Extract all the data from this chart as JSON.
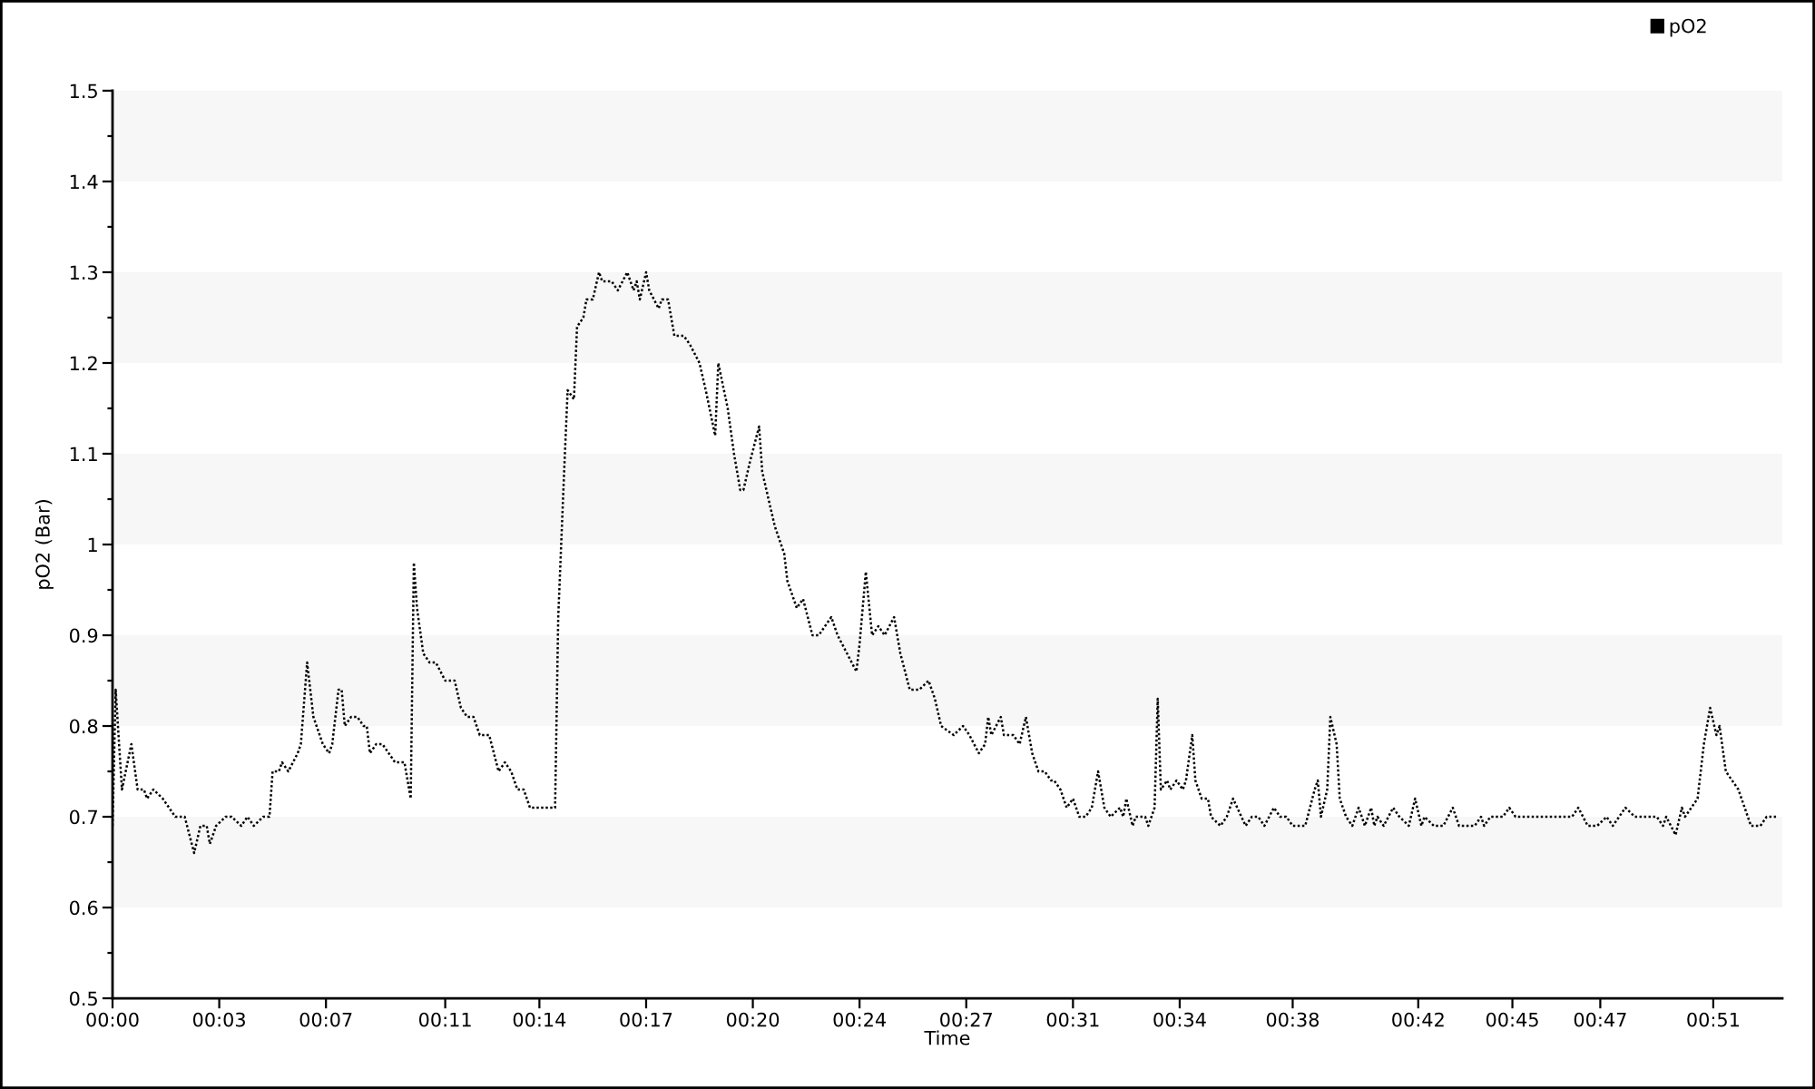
{
  "chart_data": {
    "type": "line",
    "xlabel": "Time",
    "ylabel": "pO2 (Bar)",
    "legend": "top right",
    "line_style": "dotted",
    "x": [
      0.0,
      0.1,
      0.3,
      0.6,
      0.8,
      1.0,
      1.1,
      1.3,
      1.6,
      1.8,
      2.0,
      2.3,
      2.6,
      2.8,
      3.0,
      3.1,
      3.3,
      3.6,
      3.8,
      4.1,
      4.3,
      4.5,
      4.8,
      5.0,
      5.1,
      5.3,
      5.4,
      5.6,
      5.9,
      6.0,
      6.2,
      6.4,
      6.7,
      6.9,
      7.0,
      7.2,
      7.3,
      7.4,
      7.6,
      7.8,
      8.0,
      8.1,
      8.2,
      8.4,
      8.6,
      8.8,
      9.0,
      9.3,
      9.5,
      9.6,
      9.7,
      9.9,
      10.1,
      10.3,
      10.6,
      10.9,
      11.1,
      11.3,
      11.5,
      11.7,
      12.0,
      12.3,
      12.5,
      12.7,
      12.9,
      13.1,
      13.3,
      14.1,
      14.2,
      14.4,
      14.5,
      14.7,
      14.8,
      15.0,
      15.1,
      15.3,
      15.5,
      15.6,
      15.9,
      16.1,
      16.4,
      16.6,
      16.7,
      16.8,
      17.0,
      17.1,
      17.4,
      17.5,
      17.7,
      17.9,
      18.2,
      18.4,
      18.7,
      18.9,
      19.2,
      19.3,
      19.6,
      19.8,
      20.0,
      20.1,
      20.3,
      20.6,
      20.7,
      20.9,
      21.1,
      21.4,
      21.5,
      21.7,
      21.8,
      22.0,
      22.3,
      22.5,
      22.7,
      22.9,
      23.1,
      23.4,
      23.7,
      23.8,
      24.0,
      24.2,
      24.4,
      24.6,
      24.9,
      25.1,
      25.4,
      25.7,
      26.0,
      26.2,
      26.4,
      26.8,
      27.1,
      27.3,
      27.6,
      27.8,
      27.9,
      28.0,
      28.3,
      28.4,
      28.7,
      28.9,
      29.1,
      29.3,
      29.5,
      29.7,
      29.9,
      30.0,
      30.2,
      30.4,
      30.6,
      30.8,
      31.0,
      31.2,
      31.4,
      31.6,
      31.8,
      32.1,
      32.2,
      32.3,
      32.5,
      32.6,
      32.9,
      33.0,
      33.2,
      33.3,
      33.4,
      33.6,
      33.7,
      33.9,
      34.1,
      34.2,
      34.4,
      34.5,
      34.7,
      34.9,
      35.0,
      35.3,
      35.5,
      35.7,
      36.1,
      36.3,
      36.5,
      36.7,
      37.0,
      37.2,
      37.4,
      37.6,
      38.0,
      38.3,
      38.4,
      38.5,
      38.7,
      38.8,
      39.0,
      39.1,
      39.3,
      39.5,
      39.7,
      39.9,
      40.1,
      40.2,
      40.3,
      40.5,
      40.8,
      41.0,
      41.3,
      41.5,
      41.7,
      41.8,
      42.1,
      42.4,
      42.7,
      42.9,
      43.4,
      43.6,
      43.7,
      43.9,
      44.1,
      44.3,
      44.5,
      44.7,
      46.5,
      46.7,
      47.0,
      47.3,
      47.6,
      47.8,
      48.2,
      48.5,
      49.2,
      49.4,
      49.5,
      49.8,
      50.0,
      50.1,
      50.3,
      50.5,
      50.7,
      50.9,
      51.1,
      51.2,
      51.4,
      51.6,
      51.8,
      52.2,
      52.5,
      52.7,
      53.0
    ],
    "series": [
      {
        "name": "pO2",
        "color": "#000000",
        "values": [
          0.69,
          0.84,
          0.73,
          0.78,
          0.73,
          0.73,
          0.72,
          0.73,
          0.72,
          0.71,
          0.7,
          0.7,
          0.66,
          0.69,
          0.69,
          0.67,
          0.69,
          0.7,
          0.7,
          0.69,
          0.7,
          0.69,
          0.7,
          0.7,
          0.75,
          0.75,
          0.76,
          0.75,
          0.77,
          0.78,
          0.87,
          0.81,
          0.78,
          0.77,
          0.78,
          0.84,
          0.84,
          0.8,
          0.81,
          0.81,
          0.8,
          0.8,
          0.77,
          0.78,
          0.78,
          0.77,
          0.76,
          0.76,
          0.72,
          0.98,
          0.93,
          0.88,
          0.87,
          0.87,
          0.85,
          0.85,
          0.82,
          0.81,
          0.81,
          0.79,
          0.79,
          0.75,
          0.76,
          0.75,
          0.73,
          0.73,
          0.71,
          0.71,
          0.92,
          1.09,
          1.17,
          1.16,
          1.24,
          1.25,
          1.27,
          1.27,
          1.3,
          1.29,
          1.29,
          1.28,
          1.3,
          1.28,
          1.29,
          1.27,
          1.3,
          1.28,
          1.26,
          1.27,
          1.27,
          1.23,
          1.23,
          1.22,
          1.2,
          1.17,
          1.12,
          1.2,
          1.15,
          1.1,
          1.06,
          1.06,
          1.09,
          1.13,
          1.08,
          1.05,
          1.02,
          0.99,
          0.96,
          0.94,
          0.93,
          0.94,
          0.9,
          0.9,
          0.91,
          0.92,
          0.9,
          0.88,
          0.86,
          0.89,
          0.97,
          0.9,
          0.91,
          0.9,
          0.92,
          0.88,
          0.84,
          0.84,
          0.85,
          0.83,
          0.8,
          0.79,
          0.8,
          0.79,
          0.77,
          0.78,
          0.81,
          0.79,
          0.81,
          0.79,
          0.79,
          0.78,
          0.81,
          0.77,
          0.75,
          0.75,
          0.74,
          0.74,
          0.73,
          0.71,
          0.72,
          0.7,
          0.7,
          0.71,
          0.75,
          0.71,
          0.7,
          0.71,
          0.7,
          0.72,
          0.69,
          0.7,
          0.7,
          0.69,
          0.71,
          0.83,
          0.73,
          0.74,
          0.73,
          0.74,
          0.73,
          0.74,
          0.79,
          0.74,
          0.72,
          0.72,
          0.7,
          0.69,
          0.7,
          0.72,
          0.69,
          0.7,
          0.7,
          0.69,
          0.71,
          0.7,
          0.7,
          0.69,
          0.69,
          0.73,
          0.74,
          0.7,
          0.73,
          0.81,
          0.78,
          0.72,
          0.7,
          0.69,
          0.71,
          0.69,
          0.71,
          0.69,
          0.7,
          0.69,
          0.71,
          0.7,
          0.69,
          0.72,
          0.69,
          0.7,
          0.69,
          0.69,
          0.71,
          0.69,
          0.69,
          0.7,
          0.69,
          0.7,
          0.7,
          0.7,
          0.71,
          0.7,
          0.7,
          0.71,
          0.69,
          0.69,
          0.7,
          0.69,
          0.71,
          0.7,
          0.7,
          0.69,
          0.7,
          0.68,
          0.71,
          0.7,
          0.71,
          0.72,
          0.78,
          0.82,
          0.79,
          0.8,
          0.75,
          0.74,
          0.73,
          0.69,
          0.69,
          0.7,
          0.7
        ]
      }
    ],
    "xlim": [
      0,
      53.2
    ],
    "xticks": [
      {
        "value": 0,
        "label": "00:00"
      },
      {
        "value": 3.4,
        "label": "00:03"
      },
      {
        "value": 6.8,
        "label": "00:07"
      },
      {
        "value": 10.6,
        "label": "00:11"
      },
      {
        "value": 13.6,
        "label": "00:14"
      },
      {
        "value": 17,
        "label": "00:17"
      },
      {
        "value": 20.4,
        "label": "00:20"
      },
      {
        "value": 23.8,
        "label": "00:24"
      },
      {
        "value": 27.2,
        "label": "00:27"
      },
      {
        "value": 30.6,
        "label": "00:31"
      },
      {
        "value": 34,
        "label": "00:34"
      },
      {
        "value": 37.6,
        "label": "00:38"
      },
      {
        "value": 41.6,
        "label": "00:42"
      },
      {
        "value": 44.6,
        "label": "00:45"
      },
      {
        "value": 47.4,
        "label": "00:47"
      },
      {
        "value": 51,
        "label": "00:51"
      }
    ],
    "ylim": [
      0.5,
      1.5
    ],
    "yticks": [
      0.5,
      {
        "value": 0.55,
        "label": null
      },
      0.6,
      {
        "value": 0.65,
        "label": null
      },
      0.7,
      {
        "value": 0.75,
        "label": null
      },
      0.8,
      {
        "value": 0.85,
        "label": null
      },
      0.9,
      {
        "value": 0.95,
        "label": null
      },
      1,
      {
        "value": 1.05,
        "label": null
      },
      1.1,
      {
        "value": 1.15,
        "label": null
      },
      1.2,
      {
        "value": 1.25,
        "label": null
      },
      1.3,
      {
        "value": 1.35,
        "label": null
      },
      1.4,
      {
        "value": 1.45,
        "label": null
      },
      1.5
    ],
    "bands": [
      {
        "axis": "y",
        "from": 0.6,
        "to": 0.7,
        "color": "#f7f7f7"
      },
      {
        "axis": "y",
        "from": 0.8,
        "to": 0.9,
        "color": "#f7f7f7"
      },
      {
        "axis": "y",
        "from": 1.0,
        "to": 1.1,
        "color": "#f7f7f7"
      },
      {
        "axis": "y",
        "from": 1.2,
        "to": 1.3,
        "color": "#f7f7f7"
      },
      {
        "axis": "y",
        "from": 1.4,
        "to": 1.5,
        "color": "#f7f7f7"
      }
    ]
  }
}
